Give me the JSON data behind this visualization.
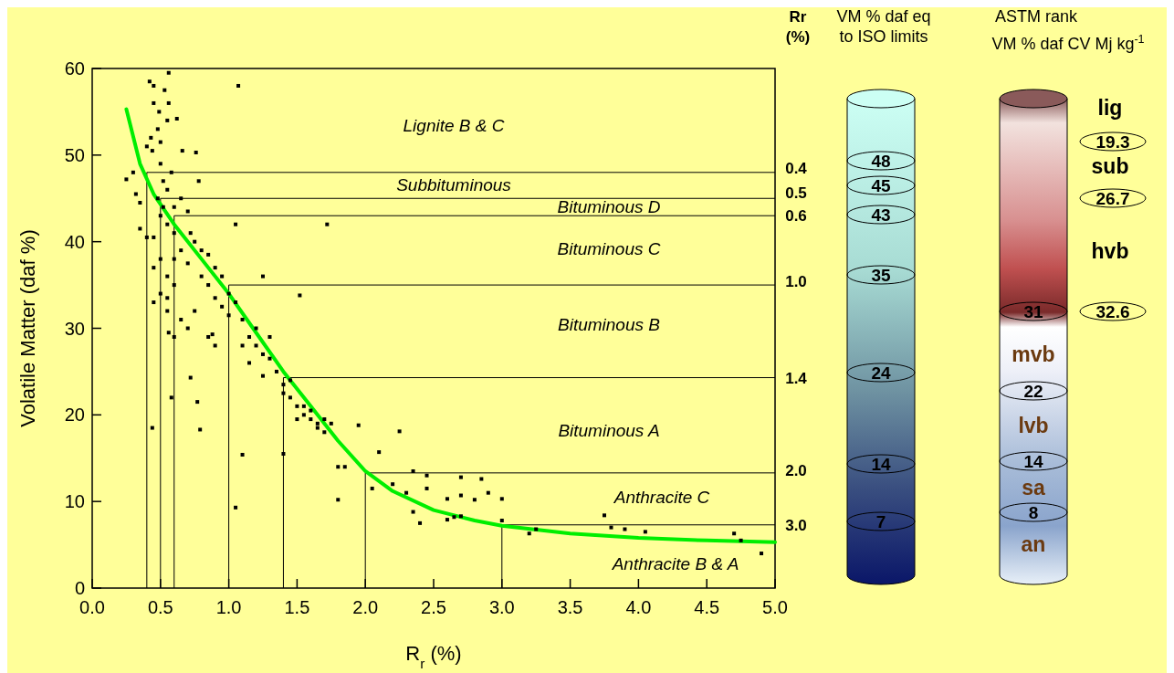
{
  "chart_data": [
    {
      "type": "scatter",
      "xlabel": "R$_{r}$ (%)",
      "ylabel": "Volatile Matter (daf %)",
      "grid": false,
      "xlim": [
        0,
        5
      ],
      "ylim": [
        0,
        60
      ],
      "xticks": [
        {
          "value": 0,
          "label": "0.0"
        },
        {
          "value": 0.5,
          "label": "0.5"
        },
        {
          "value": 1,
          "label": "1.0"
        },
        {
          "value": 1.5,
          "label": "1.5"
        },
        {
          "value": 2,
          "label": "2.0"
        },
        {
          "value": 2.5,
          "label": "2.5"
        },
        {
          "value": 3,
          "label": "3.0"
        },
        {
          "value": 3.5,
          "label": "3.5"
        },
        {
          "value": 4,
          "label": "4.0"
        },
        {
          "value": 4.5,
          "label": "4.5"
        },
        {
          "value": 5,
          "label": "5.0"
        }
      ],
      "yticks": [
        0,
        10,
        20,
        30,
        40,
        50,
        60
      ],
      "series": [
        {
          "type": "scatter",
          "marker": "square",
          "color": "#000000",
          "x": [
            0.42,
            0.45,
            0.53,
            0.56,
            0.45,
            0.56,
            0.49,
            0.55,
            0.62,
            0.48,
            0.43,
            0.5,
            0.44,
            0.5,
            1.07,
            0.66,
            0.76,
            0.78,
            0.25,
            0.3,
            0.32,
            0.35,
            0.35,
            0.4,
            0.45,
            0.48,
            0.52,
            0.55,
            0.6,
            0.65,
            0.7,
            0.72,
            0.75,
            0.8,
            0.85,
            0.9,
            0.95,
            0.5,
            0.55,
            0.6,
            0.65,
            0.7,
            0.8,
            0.85,
            0.9,
            1.0,
            1.05,
            1.1,
            1.0,
            0.95,
            0.5,
            0.55,
            0.6,
            0.45,
            0.55,
            0.65,
            0.7,
            0.75,
            0.85,
            0.9,
            0.5,
            0.6,
            0.45,
            0.55,
            0.6,
            1.15,
            1.2,
            1.25,
            1.3,
            1.35,
            1.2,
            1.3,
            1.1,
            1.15,
            1.25,
            1.4,
            1.45,
            1.5,
            1.55,
            1.6,
            1.65,
            1.7,
            1.55,
            1.6,
            1.65,
            1.5,
            1.45,
            1.4,
            1.75,
            1.7,
            1.8,
            1.85,
            1.8,
            2.05,
            2.1,
            2.25,
            1.95,
            2.35,
            2.45,
            2.7,
            2.85,
            2.2,
            2.3,
            2.45,
            2.6,
            2.7,
            2.8,
            2.9,
            3.0,
            2.35,
            2.4,
            2.6,
            2.65,
            2.7,
            3.0,
            3.2,
            3.25,
            3.75,
            3.8,
            3.9,
            4.05,
            4.7,
            4.75,
            4.9,
            1.05,
            1.1,
            1.4,
            0.44,
            0.58,
            0.56,
            0.72,
            0.77,
            0.79,
            1.72,
            1.52,
            0.88,
            1.25,
            1.05,
            0.4,
            0.52,
            0.58
          ],
          "values": [
            58.5,
            58,
            57.5,
            59.5,
            56,
            56,
            55,
            54,
            54.2,
            53,
            52,
            51.5,
            50.5,
            49,
            58,
            50.5,
            50.3,
            47,
            47.2,
            48,
            45.5,
            44.5,
            41.5,
            40.5,
            40.5,
            45,
            47,
            46,
            44,
            45,
            43.5,
            41,
            40,
            39,
            38.5,
            37,
            36,
            43,
            42,
            41,
            39,
            37.5,
            36,
            35,
            33.5,
            34,
            33,
            31,
            31.5,
            32.5,
            38,
            36,
            35,
            37,
            32,
            31,
            30,
            32,
            29,
            28,
            34,
            29,
            33,
            33.5,
            38,
            29,
            28,
            27,
            26.5,
            25,
            30,
            29,
            28,
            26,
            24.5,
            23.5,
            22,
            21,
            20,
            19.5,
            18.5,
            18,
            21,
            20.5,
            19,
            19.5,
            24,
            22.5,
            19,
            19.5,
            14,
            14,
            10.2,
            11.5,
            15.7,
            18.1,
            18.8,
            13.5,
            13,
            12.8,
            12.6,
            12,
            11,
            11.5,
            10.3,
            10.7,
            10.2,
            11,
            10.3,
            8.8,
            7.5,
            7.9,
            8.2,
            8.3,
            7.8,
            6.3,
            6.8,
            8.4,
            7.0,
            6.8,
            6.5,
            6.3,
            5.5,
            4.0,
            9.3,
            15.4,
            15.5,
            18.5,
            22,
            29.5,
            24.3,
            21.5,
            18.3,
            42,
            33.8,
            29.3,
            36,
            42,
            51,
            44,
            48
          ]
        },
        {
          "type": "line",
          "color": "#00ee00",
          "x": [
            0.25,
            0.35,
            0.45,
            0.6,
            0.8,
            1.0,
            1.2,
            1.4,
            1.6,
            1.8,
            2.0,
            2.2,
            2.5,
            2.8,
            3.0,
            3.5,
            4.0,
            4.5,
            5.0
          ],
          "values": [
            55.3,
            49,
            45.5,
            42,
            38,
            34,
            29.5,
            25,
            21,
            17,
            13.5,
            11.2,
            9,
            7.8,
            7.2,
            6.3,
            5.8,
            5.5,
            5.3
          ]
        }
      ],
      "ref_lines": [
        {
          "axis": "y",
          "value": 48
        },
        {
          "axis": "y",
          "value": 45
        },
        {
          "axis": "y",
          "value": 43
        },
        {
          "axis": "y",
          "value": 35
        },
        {
          "axis": "y",
          "value": 24.3
        },
        {
          "axis": "y",
          "value": 13.3
        },
        {
          "axis": "y",
          "value": 7.3
        },
        {
          "axis": "x",
          "value": 0.4
        },
        {
          "axis": "x",
          "value": 0.5
        },
        {
          "axis": "x",
          "value": 0.6
        },
        {
          "axis": "x",
          "value": 1.0
        },
        {
          "axis": "x",
          "value": 1.4
        },
        {
          "axis": "x",
          "value": 2.0
        },
        {
          "axis": "x",
          "value": 3.0
        }
      ],
      "annotations": [
        "Lignite B & C",
        "Subbituminous",
        "Bituminous D",
        "Bituminous C",
        "Bituminous B",
        "Bituminous A",
        "Anthracite  C",
        "Anthracite  B & A"
      ]
    },
    {
      "type": "other",
      "title": "VM % daf eq to ISO limits",
      "annotations": [
        "Rr (%)",
        "0.4",
        "0.5",
        "0.6",
        "1.0",
        "1.4",
        "2.0",
        "3.0",
        "48",
        "45",
        "43",
        "35",
        "24",
        "14",
        "7"
      ]
    },
    {
      "type": "other",
      "title": "ASTM rank",
      "subtitle": "VM % daf  CV Mj kg$^{-1}$",
      "annotations": [
        "lig",
        "sub",
        "hvb",
        "mvb",
        "lvb",
        "sa",
        "an",
        "31",
        "22",
        "14",
        "8",
        "19.3",
        "26.7",
        "32.6"
      ]
    }
  ]
}
